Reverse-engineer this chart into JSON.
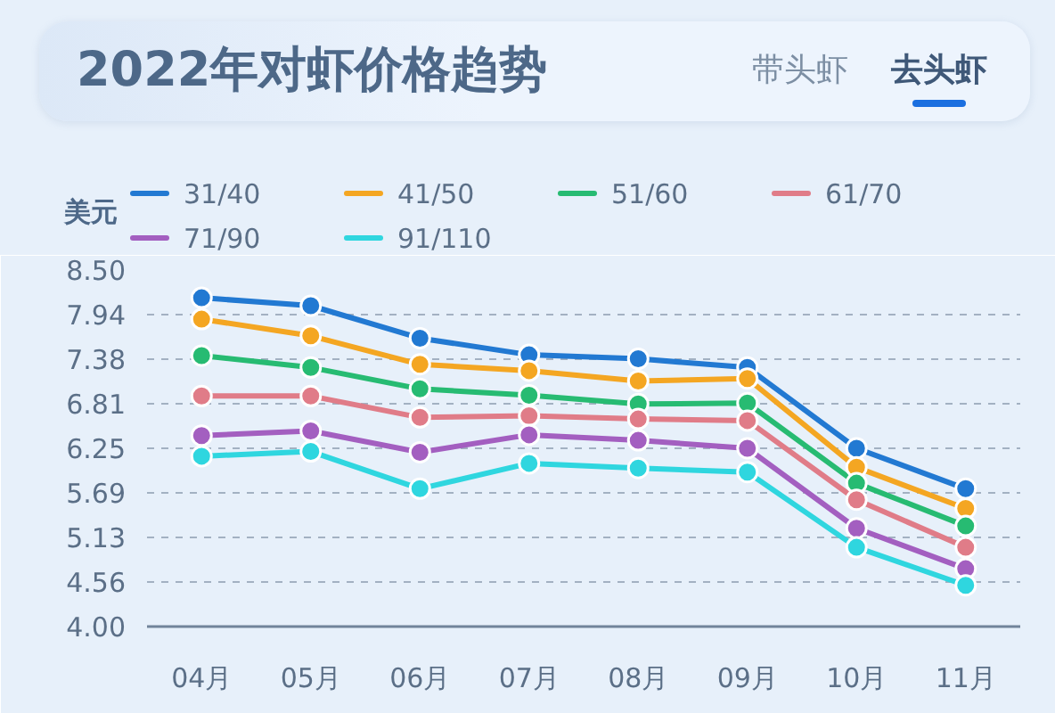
{
  "chart_data": {
    "type": "line",
    "title": "2022年对虾价格趋势",
    "annotations": [
      "带头虾",
      "去头虾"
    ],
    "ylabel": "美元",
    "categories": [
      "04月",
      "05月",
      "06月",
      "07月",
      "08月",
      "09月",
      "10月",
      "11月"
    ],
    "ylim": [
      4,
      8.5
    ],
    "yticks": [
      {
        "value": 4,
        "label": "4.00"
      },
      {
        "value": 4.5625,
        "label": "4.56"
      },
      {
        "value": 5.125,
        "label": "5.13"
      },
      {
        "value": 5.6875,
        "label": "5.69"
      },
      {
        "value": 6.25,
        "label": "6.25"
      },
      {
        "value": 6.8125,
        "label": "6.81"
      },
      {
        "value": 7.375,
        "label": "7.38"
      },
      {
        "value": 7.9375,
        "label": "7.94"
      },
      {
        "value": 8.5,
        "label": "8.50"
      }
    ],
    "grid": "y",
    "legend": "top",
    "marker": "circle",
    "series": [
      {
        "name": "31/40",
        "color": "#2279d2",
        "values": [
          8.15,
          8.05,
          7.64,
          7.43,
          7.38,
          7.27,
          6.25,
          5.74
        ]
      },
      {
        "name": "41/50",
        "color": "#f4a622",
        "values": [
          7.88,
          7.67,
          7.31,
          7.23,
          7.1,
          7.13,
          6.01,
          5.49
        ]
      },
      {
        "name": "51/60",
        "color": "#27bb72",
        "values": [
          7.42,
          7.27,
          7.0,
          6.92,
          6.81,
          6.82,
          5.81,
          5.27
        ]
      },
      {
        "name": "61/70",
        "color": "#e07c88",
        "values": [
          6.91,
          6.91,
          6.64,
          6.66,
          6.62,
          6.6,
          5.6,
          5.0
        ]
      },
      {
        "name": "71/90",
        "color": "#a35fc0",
        "values": [
          6.41,
          6.47,
          6.2,
          6.42,
          6.35,
          6.25,
          5.24,
          4.73
        ]
      },
      {
        "name": "91/110",
        "color": "#2fd6df",
        "values": [
          6.15,
          6.21,
          5.74,
          6.06,
          6.0,
          5.95,
          5.0,
          4.52
        ]
      }
    ]
  }
}
